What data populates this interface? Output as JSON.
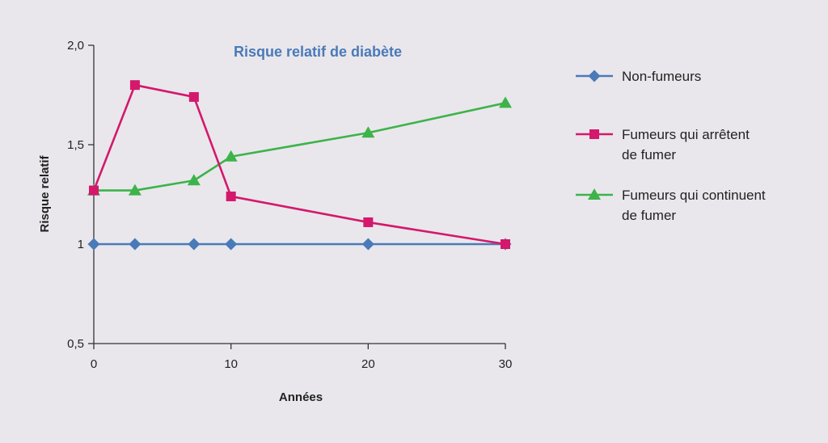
{
  "chart_data": {
    "type": "line",
    "title": "Risque relatif de diabète",
    "title_color": "#4a7ab8",
    "xlabel": "Années",
    "ylabel": "Risque relatif",
    "xlim": [
      0,
      30
    ],
    "ylim": [
      0.5,
      2.0
    ],
    "x_ticks": [
      0,
      10,
      20,
      30
    ],
    "x_tick_labels": [
      "0",
      "10",
      "20",
      "30"
    ],
    "y_ticks": [
      0.5,
      1,
      1.5,
      2.0
    ],
    "y_tick_labels": [
      "0,5",
      "1",
      "1,5",
      "2,0"
    ],
    "grid": false,
    "legend_position": "right",
    "series": [
      {
        "name": "Non-fumeurs",
        "name_lines": [
          "Non-fumeurs"
        ],
        "color": "#4a7ab8",
        "marker": "diamond",
        "x": [
          0,
          3,
          7.3,
          10,
          20,
          30
        ],
        "y": [
          1.0,
          1.0,
          1.0,
          1.0,
          1.0,
          1.0
        ]
      },
      {
        "name": "Fumeurs qui arrêtent de fumer",
        "name_lines": [
          "Fumeurs qui arrêtent",
          "de fumer"
        ],
        "color": "#d4186c",
        "marker": "square",
        "x": [
          0,
          3,
          7.3,
          10,
          20,
          30
        ],
        "y": [
          1.27,
          1.8,
          1.74,
          1.24,
          1.11,
          1.0
        ]
      },
      {
        "name": "Fumeurs qui continuent de fumer",
        "name_lines": [
          "Fumeurs qui continuent",
          "de fumer"
        ],
        "color": "#3db34a",
        "marker": "triangle",
        "x": [
          0,
          3,
          7.3,
          10,
          20,
          30
        ],
        "y": [
          1.27,
          1.27,
          1.32,
          1.44,
          1.56,
          1.71
        ]
      }
    ]
  }
}
